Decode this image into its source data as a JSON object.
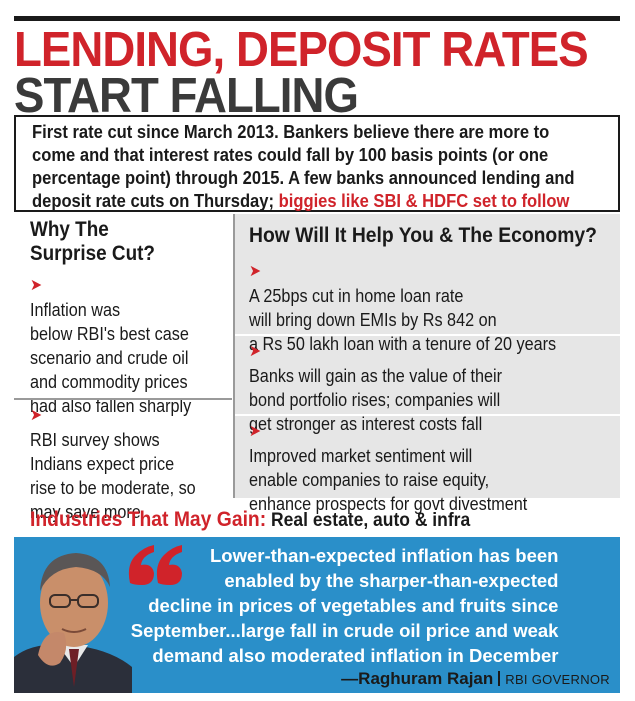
{
  "headline": {
    "line1": "LENDING, DEPOSIT RATES",
    "line2": "START FALLING"
  },
  "intro": {
    "lines": [
      "First rate cut since March 2013. Bankers believe there are more to",
      "come and that interest rates could fall by 100 basis points (or one",
      "percentage point) through 2015. A few banks announced lending and"
    ],
    "line4_black": "deposit rate cuts on Thursday;",
    "line4_red": "biggies like SBI & HDFC set to follow"
  },
  "why": {
    "title_lines": [
      "Why The",
      "Surprise Cut?"
    ],
    "bullets": [
      {
        "lines": [
          "Inflation was",
          "below RBI's best case",
          "scenario and crude oil",
          "and commodity prices",
          "had also fallen sharply"
        ]
      },
      {
        "lines": [
          "RBI survey shows",
          "Indians expect price",
          "rise to be moderate, so",
          "may save more"
        ]
      }
    ]
  },
  "help": {
    "title": "How Will It Help You & The Economy?",
    "bullets": [
      {
        "lines": [
          "A 25bps cut in home loan rate",
          "will bring down EMIs by Rs 842 on",
          "a Rs 50 lakh loan with a tenure of 20 years"
        ]
      },
      {
        "lines": [
          "Banks will gain as the value of their",
          "bond portfolio rises; companies will",
          "get stronger as interest costs fall"
        ]
      },
      {
        "lines": [
          "Improved market sentiment will",
          "enable companies to raise equity,",
          "enhance prospects for govt divestment"
        ]
      }
    ]
  },
  "industries": {
    "label": "Industries That May Gain:",
    "value": "Real estate, auto & infra"
  },
  "quote": {
    "lines": [
      "Lower-than-expected inflation has been",
      "enabled by the sharper-than-expected",
      "decline in prices of vegetables and fruits since",
      "September...large fall in crude oil price and weak",
      "demand also moderated inflation in December"
    ],
    "author": "—Raghuram Rajan",
    "role": "RBI GOVERNOR"
  },
  "colors": {
    "accent_red": "#d0232a",
    "quote_blue": "#2a8fc9",
    "panel_grey": "#e6e6e6"
  },
  "icons": {
    "bullet": "red-arrow-icon",
    "quote": "red-quote-mark-icon"
  }
}
